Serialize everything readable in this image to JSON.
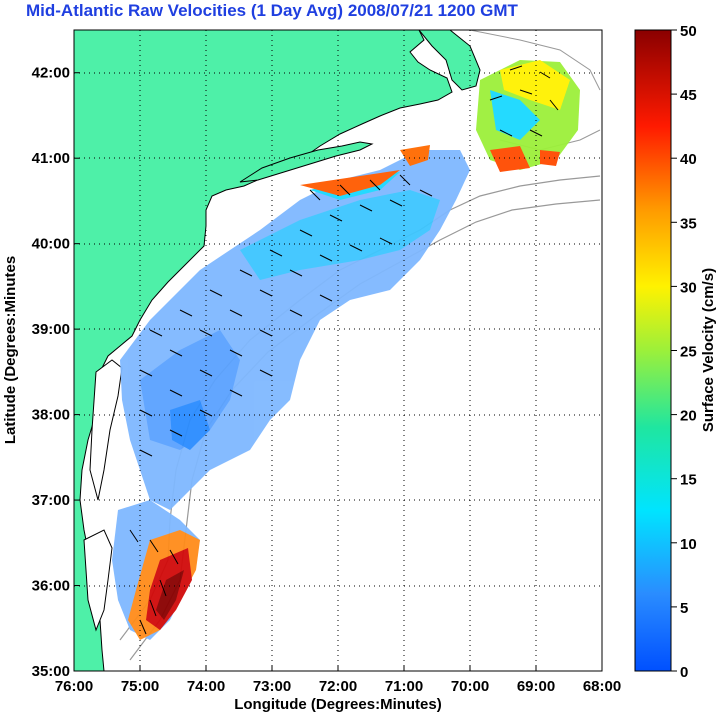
{
  "title": "Mid-Atlantic Raw Velocities (1 Day Avg) 2008/07/21 1200 GMT",
  "map": {
    "xlabel": "Longitude (Degrees:Minutes)",
    "ylabel": "Latitude (Degrees:Minutes",
    "x_ticks": [
      "76:00",
      "75:00",
      "74:00",
      "73:00",
      "72:00",
      "71:00",
      "70:00",
      "69:00",
      "68:00"
    ],
    "y_ticks": [
      "35:00",
      "36:00",
      "37:00",
      "38:00",
      "39:00",
      "40:00",
      "41:00",
      "42:00"
    ],
    "lon_range": [
      -76,
      -68
    ],
    "lat_range": [
      35,
      42.5
    ],
    "grid": "dotted",
    "land_color": "#4ef0a8",
    "coast_color": "#000000",
    "isobath_color": "#999999"
  },
  "colorbar": {
    "label": "Surface Velocity (cm/s)",
    "ticks": [
      "0",
      "5",
      "10",
      "15",
      "20",
      "25",
      "30",
      "35",
      "40",
      "45",
      "50"
    ],
    "min": 0,
    "max": 50,
    "colormap": "jet"
  }
}
